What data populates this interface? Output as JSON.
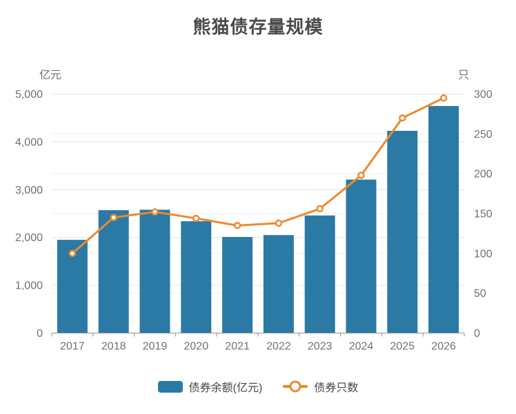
{
  "title": "熊猫债存量规模",
  "colors": {
    "bar": "#2b7aa5",
    "line": "#ec8a2a",
    "grid_major": "#dde4ee",
    "grid_minor": "#e8edf4",
    "axis": "#8f8f8f",
    "tick_text": "#707070",
    "title_text": "#4a4a4a",
    "axis_name_text": "#6e6e6e",
    "legend_text": "#464646"
  },
  "legend": {
    "bar_label": "债券余额(亿元)",
    "line_label": "债券只数"
  },
  "chart_data": {
    "type": "bar",
    "subtype": "bar+line combo, dual y-axis",
    "title": "熊猫债存量规模",
    "categories": [
      "2017",
      "2018",
      "2019",
      "2020",
      "2021",
      "2022",
      "2023",
      "2024",
      "2025",
      "2026"
    ],
    "series": [
      {
        "name": "债券余额(亿元)",
        "type": "bar",
        "axis": "left",
        "values": [
          1950,
          2570,
          2580,
          2340,
          2010,
          2050,
          2460,
          3210,
          4230,
          4750
        ]
      },
      {
        "name": "债券只数",
        "type": "line",
        "axis": "right",
        "marker": "empty-circle",
        "values": [
          100,
          145,
          152,
          144,
          135,
          138,
          156,
          198,
          270,
          295
        ]
      }
    ],
    "left_axis": {
      "name": "亿元",
      "min": 0,
      "max": 5000,
      "interval": 1000,
      "tick_labels": [
        "0",
        "1,000",
        "2,000",
        "3,000",
        "4,000",
        "5,000"
      ]
    },
    "right_axis": {
      "name": "只",
      "min": 0,
      "max": 300,
      "interval": 50,
      "tick_labels": [
        "0",
        "50",
        "100",
        "150",
        "200",
        "250",
        "300"
      ]
    },
    "grid": true,
    "legend_position": "bottom"
  }
}
